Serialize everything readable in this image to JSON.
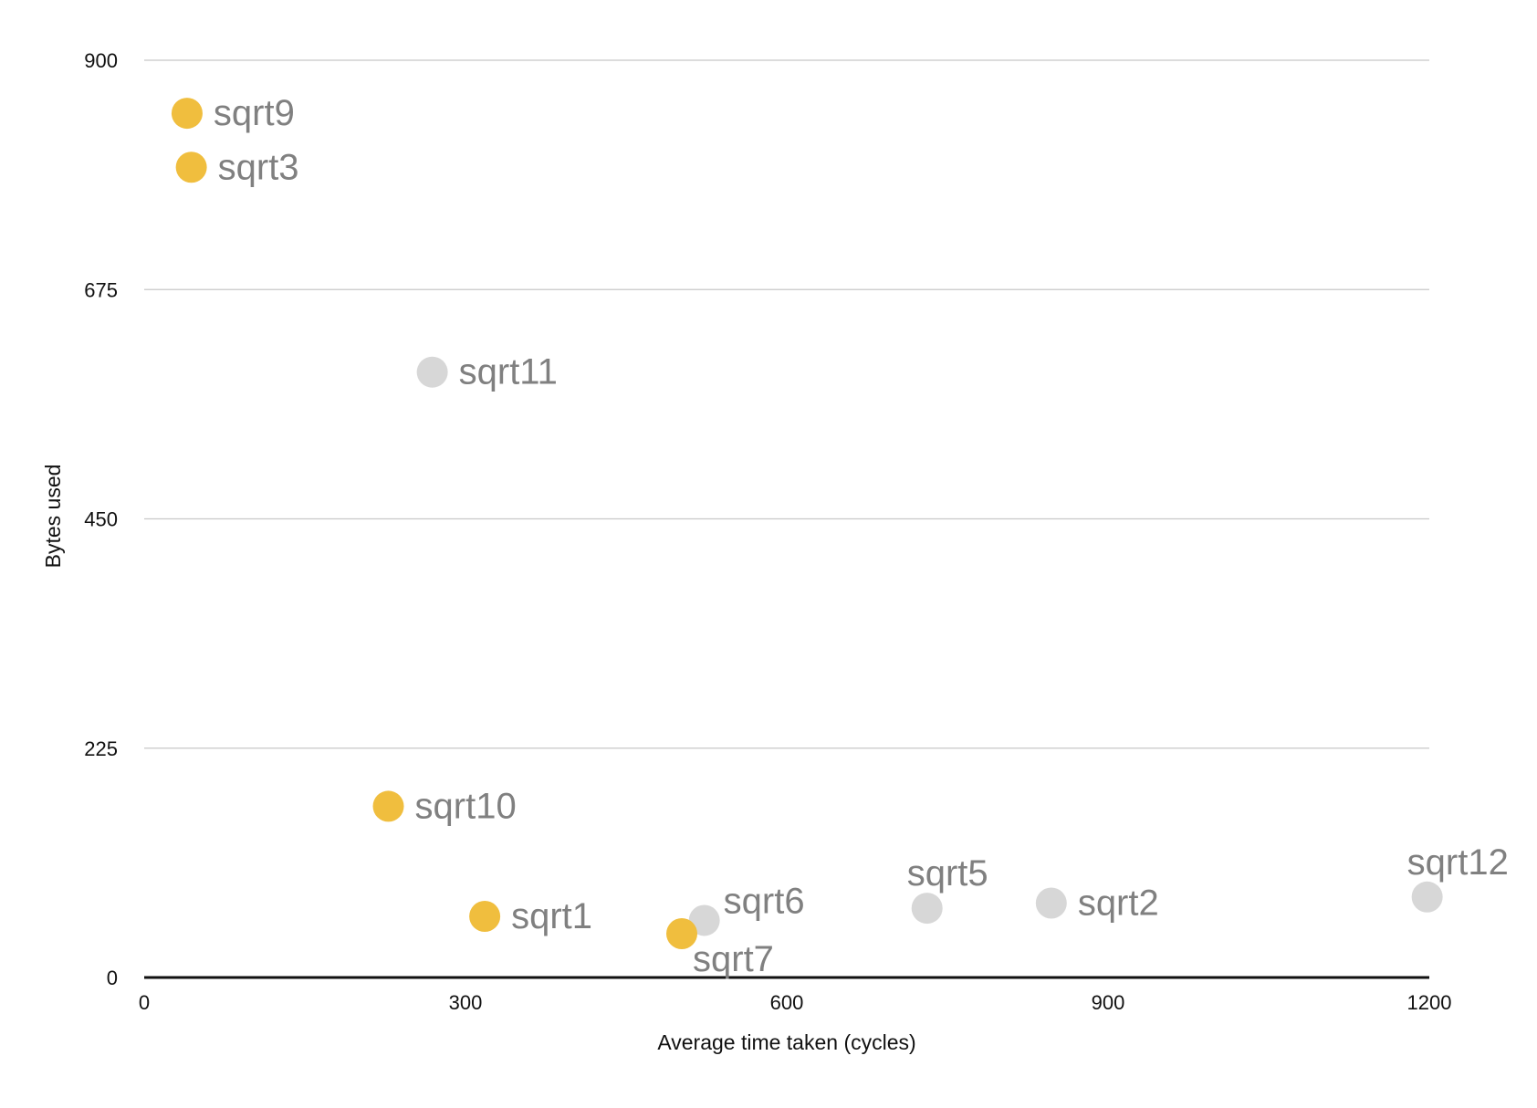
{
  "chart_data": {
    "type": "scatter",
    "title": "",
    "xlabel": "Average time taken (cycles)",
    "ylabel": "Bytes used",
    "xlim": [
      0,
      1200
    ],
    "ylim": [
      0,
      900
    ],
    "x_ticks": [
      "0",
      "300",
      "600",
      "900",
      "1200"
    ],
    "y_ticks": [
      "0",
      "225",
      "450",
      "675",
      "900"
    ],
    "grid": true,
    "legend": "none",
    "colors": {
      "highlight": "#F0BE3E",
      "other": "#D7D7D7",
      "label": "#808080"
    },
    "points": [
      {
        "label": "sqrt9",
        "x": 40,
        "y": 848,
        "group": "highlight",
        "label_pos": "right"
      },
      {
        "label": "sqrt3",
        "x": 44,
        "y": 795,
        "group": "highlight",
        "label_pos": "right"
      },
      {
        "label": "sqrt11",
        "x": 269,
        "y": 594,
        "group": "other",
        "label_pos": "right"
      },
      {
        "label": "sqrt10",
        "x": 228,
        "y": 168,
        "group": "highlight",
        "label_pos": "right"
      },
      {
        "label": "sqrt1",
        "x": 318,
        "y": 60,
        "group": "highlight",
        "label_pos": "right"
      },
      {
        "label": "sqrt6",
        "x": 523,
        "y": 56,
        "group": "other",
        "label_pos": "upper-right"
      },
      {
        "label": "sqrt7",
        "x": 502,
        "y": 43,
        "group": "highlight",
        "label_pos": "below"
      },
      {
        "label": "sqrt5",
        "x": 731,
        "y": 68,
        "group": "other",
        "label_pos": "above"
      },
      {
        "label": "sqrt2",
        "x": 847,
        "y": 73,
        "group": "other",
        "label_pos": "right"
      },
      {
        "label": "sqrt12",
        "x": 1198,
        "y": 79,
        "group": "other",
        "label_pos": "above"
      }
    ]
  }
}
